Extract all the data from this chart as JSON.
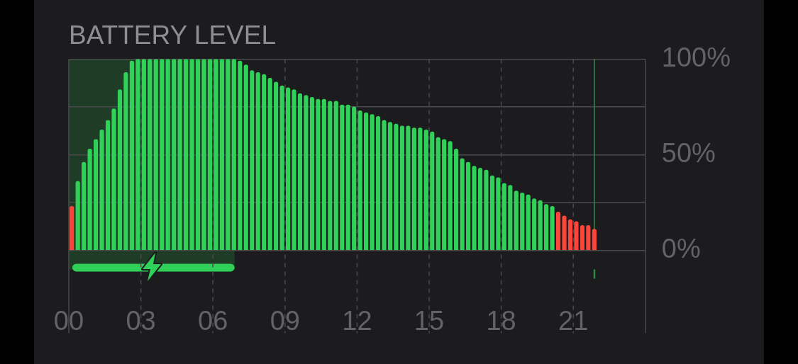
{
  "chart_data": {
    "type": "bar",
    "title": "BATTERY LEVEL",
    "x": [
      0.125,
      0.375,
      0.625,
      0.875,
      1.125,
      1.375,
      1.625,
      1.875,
      2.125,
      2.375,
      2.625,
      2.875,
      3.125,
      3.375,
      3.625,
      3.875,
      4.125,
      4.375,
      4.625,
      4.875,
      5.125,
      5.375,
      5.625,
      5.875,
      6.125,
      6.375,
      6.625,
      6.875,
      7.125,
      7.375,
      7.625,
      7.875,
      8.125,
      8.375,
      8.625,
      8.875,
      9.125,
      9.375,
      9.625,
      9.875,
      10.125,
      10.375,
      10.625,
      10.875,
      11.125,
      11.375,
      11.625,
      11.875,
      12.125,
      12.375,
      12.625,
      12.875,
      13.125,
      13.375,
      13.625,
      13.875,
      14.125,
      14.375,
      14.625,
      14.875,
      15.125,
      15.375,
      15.625,
      15.875,
      16.125,
      16.375,
      16.625,
      16.875,
      17.125,
      17.375,
      17.625,
      17.875,
      18.125,
      18.375,
      18.625,
      18.875,
      19.125,
      19.375,
      19.625,
      19.875,
      20.125,
      20.375,
      20.625,
      20.875,
      21.125,
      21.375,
      21.625,
      21.875
    ],
    "values": [
      23,
      36,
      46,
      53,
      58,
      63,
      68,
      74,
      84,
      93,
      99,
      100,
      100,
      100,
      100,
      100,
      100,
      100,
      100,
      100,
      100,
      100,
      100,
      100,
      100,
      100,
      100,
      100,
      99,
      97,
      94,
      93,
      92,
      90,
      88,
      86,
      85,
      84,
      82,
      81,
      80,
      79,
      79,
      78,
      78,
      76,
      76,
      75,
      73,
      72,
      71,
      70,
      68,
      67,
      66,
      65,
      65,
      64,
      64,
      63,
      62,
      59,
      58,
      57,
      53,
      48,
      46,
      44,
      43,
      42,
      39,
      38,
      35,
      34,
      31,
      30,
      29,
      27,
      26,
      24,
      23,
      20,
      18,
      16,
      15,
      13,
      13,
      11
    ],
    "colors": [
      "#ff453a",
      "#30d158",
      "#30d158",
      "#30d158",
      "#30d158",
      "#30d158",
      "#30d158",
      "#30d158",
      "#30d158",
      "#30d158",
      "#30d158",
      "#30d158",
      "#30d158",
      "#30d158",
      "#30d158",
      "#30d158",
      "#30d158",
      "#30d158",
      "#30d158",
      "#30d158",
      "#30d158",
      "#30d158",
      "#30d158",
      "#30d158",
      "#30d158",
      "#30d158",
      "#30d158",
      "#30d158",
      "#30d158",
      "#30d158",
      "#30d158",
      "#30d158",
      "#30d158",
      "#30d158",
      "#30d158",
      "#30d158",
      "#30d158",
      "#30d158",
      "#30d158",
      "#30d158",
      "#30d158",
      "#30d158",
      "#30d158",
      "#30d158",
      "#30d158",
      "#30d158",
      "#30d158",
      "#30d158",
      "#30d158",
      "#30d158",
      "#30d158",
      "#30d158",
      "#30d158",
      "#30d158",
      "#30d158",
      "#30d158",
      "#30d158",
      "#30d158",
      "#30d158",
      "#30d158",
      "#30d158",
      "#30d158",
      "#30d158",
      "#30d158",
      "#30d158",
      "#30d158",
      "#30d158",
      "#30d158",
      "#30d158",
      "#30d158",
      "#30d158",
      "#30d158",
      "#30d158",
      "#30d158",
      "#30d158",
      "#30d158",
      "#30d158",
      "#30d158",
      "#30d158",
      "#30d158",
      "#30d158",
      "#ff453a",
      "#ff453a",
      "#ff453a",
      "#ff453a",
      "#ff453a",
      "#ff453a",
      "#ff453a"
    ],
    "xlim": [
      0,
      24
    ],
    "xticks": [
      {
        "value": 0,
        "label": "00"
      },
      {
        "value": 3,
        "label": "03"
      },
      {
        "value": 6,
        "label": "06"
      },
      {
        "value": 9,
        "label": "09"
      },
      {
        "value": 12,
        "label": "12"
      },
      {
        "value": 15,
        "label": "15"
      },
      {
        "value": 18,
        "label": "18"
      },
      {
        "value": 21,
        "label": "21"
      }
    ],
    "ylim": [
      0,
      100
    ],
    "yticks": [
      {
        "value": 0,
        "label": "0%"
      },
      {
        "value": 25,
        "label": null
      },
      {
        "value": 50,
        "label": "50%"
      },
      {
        "value": 75,
        "label": null
      },
      {
        "value": 100,
        "label": "100%"
      }
    ],
    "grid": true,
    "bands": [
      {
        "axis": "x",
        "from": 0,
        "to": 6.9,
        "color": "#1f3c26"
      }
    ],
    "ref_lines": [
      {
        "axis": "x",
        "value": 21.88,
        "color": "#2e8b47"
      }
    ]
  }
}
